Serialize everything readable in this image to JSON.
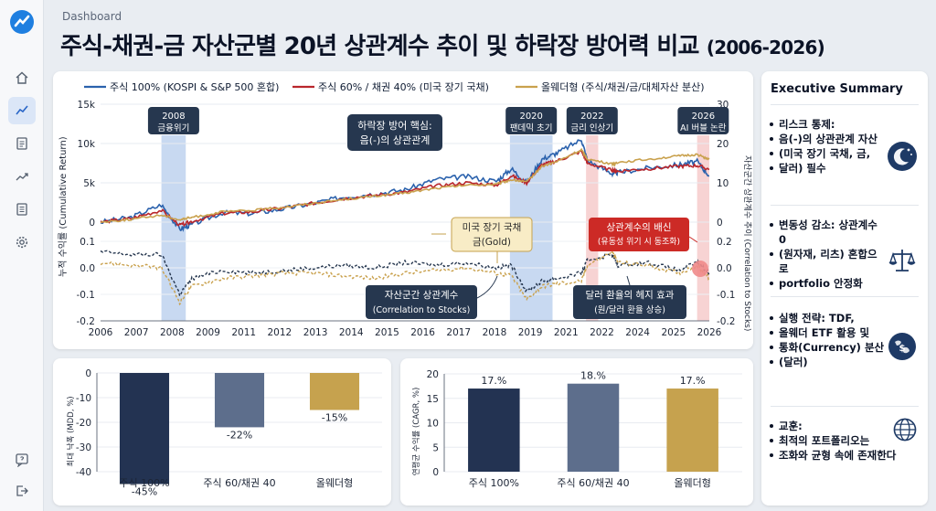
{
  "header": {
    "breadcrumb": "Dashboard",
    "title": "주식-채권-금 자산군별 20년 상관계수 추이 및 하락장 방어력 비교",
    "title_years": "(2006-2026)"
  },
  "nav": {
    "items": [
      "logo-icon",
      "home-icon",
      "chart-icon",
      "document-icon",
      "trend-icon",
      "list-icon",
      "settings-icon"
    ],
    "bottom": [
      "help-icon",
      "logout-icon"
    ],
    "active": "chart-icon"
  },
  "colors": {
    "stock": "#2b62ad",
    "balanced": "#b9262c",
    "allweather": "#c9a14d",
    "navy": "#233352",
    "slate": "#5d6e8c",
    "gold": "#c6a24e",
    "crisis_blue": "#b5ccec",
    "crisis_red": "#f4c4c4"
  },
  "chart_data": [
    {
      "type": "line",
      "legend": [
        "주식 100% (KOSPI & S&P 500 혼합)",
        "주식 60% / 채권 40% (미국 장기 국채)",
        "올웨더형 (주식/채권/금/대체자산 분산)"
      ],
      "x": [
        2006,
        2007,
        2008,
        2008.6,
        2009,
        2010,
        2011,
        2012,
        2013,
        2014,
        2015,
        2016,
        2017,
        2018,
        2019,
        2019.5,
        2020,
        2020.5,
        2021,
        2021.8,
        2022,
        2022.8,
        2023,
        2024,
        2025,
        2025.6,
        2026
      ],
      "xticks": [
        "2006",
        "2007",
        "2008",
        "2009",
        "2011",
        "2012",
        "2013",
        "2014",
        "2015",
        "2016",
        "2017",
        "2018",
        "2019",
        "2021",
        "2022",
        "2024",
        "2025",
        "2026"
      ],
      "ylabel_left": "누적 수익률 (Cumulative Return)",
      "ylabel_right": "자산군간 상관계수 추이 (Correlation to Stocks)",
      "yticks_left_top": [
        "15k",
        "10k",
        "5k",
        "0"
      ],
      "yticks_left_bottom": [
        "0.1",
        "0.0",
        "-0.1",
        "-0.2"
      ],
      "yticks_right_top": [
        "30",
        "20",
        "10",
        "0"
      ],
      "yticks_right_bottom": [
        "0.2",
        "0.0",
        "-0.1",
        "-0.2"
      ],
      "ylim_left_top": [
        0,
        15000
      ],
      "ylim_left_bottom": [
        -0.2,
        0.1
      ],
      "series": [
        {
          "name": "주식 100% (KOSPI & S&P 500 혼합)",
          "role": "stock",
          "values": [
            0,
            600,
            2200,
            -900,
            -300,
            1200,
            1100,
            1700,
            2400,
            3200,
            3600,
            4100,
            5400,
            5800,
            5200,
            6800,
            5000,
            8000,
            8800,
            10500,
            7800,
            6200,
            6300,
            6900,
            7300,
            7700,
            5900
          ]
        },
        {
          "name": "주식 60% / 채권 40% (미국 장기 국채)",
          "role": "balanced",
          "values": [
            0,
            450,
            1500,
            -400,
            100,
            1100,
            1300,
            1800,
            2400,
            3000,
            3400,
            3800,
            4600,
            5000,
            4700,
            5900,
            5000,
            7300,
            7800,
            9000,
            7500,
            6600,
            6500,
            6800,
            7100,
            7200,
            6700
          ]
        },
        {
          "name": "올웨더형 (주식/채권/금/대체자산 분산)",
          "role": "allweather",
          "values": [
            0,
            350,
            900,
            300,
            600,
            1300,
            1500,
            1900,
            2400,
            2900,
            3300,
            3700,
            4300,
            4700,
            4800,
            5400,
            5100,
            7100,
            7700,
            9200,
            8000,
            7400,
            7600,
            8000,
            8400,
            8600,
            8000
          ]
        },
        {
          "name": "자산군간 상관계수",
          "role": "correlation_stock",
          "values": [
            0.06,
            0.05,
            0.05,
            -0.1,
            -0.04,
            -0.01,
            -0.02,
            -0.01,
            0.0,
            0.01,
            0.0,
            0.02,
            0.01,
            0.02,
            0.0,
            0.01,
            -0.09,
            -0.05,
            -0.04,
            -0.02,
            0.03,
            0.05,
            0.01,
            0.02,
            -0.01,
            0.02,
            -0.02
          ]
        },
        {
          "name": "금(Gold)",
          "role": "correlation_gold",
          "values": [
            0.02,
            0.01,
            0.0,
            -0.13,
            -0.07,
            -0.04,
            -0.03,
            -0.02,
            -0.02,
            -0.03,
            -0.04,
            -0.02,
            -0.01,
            0.0,
            -0.02,
            -0.03,
            -0.12,
            -0.07,
            -0.06,
            -0.05,
            0.01,
            0.06,
            0.02,
            0.01,
            -0.02,
            0.01,
            -0.04
          ]
        }
      ],
      "events": [
        {
          "label1": "2008",
          "label2": "금융위기",
          "from": 2008,
          "to": 2008.8,
          "tone": "blue"
        },
        {
          "label1": "2020",
          "label2": "팬데믹 초기",
          "from": 2019.45,
          "to": 2020.85,
          "tone": "blue"
        },
        {
          "label1": "2022",
          "label2": "금리 인상기",
          "from": 2021.95,
          "to": 2022.35,
          "tone": "red"
        },
        {
          "label1": "2026",
          "label2": "AI 버블 논란",
          "from": 2025.6,
          "to": 2026,
          "tone": "red"
        }
      ],
      "annotations": {
        "hedge_core_1": "하락장 방어 핵심:",
        "hedge_core_2": "음(-)의 상관관계",
        "bond_gold_1": "미국 장기 국채",
        "bond_gold_2": "금(Gold)",
        "corr_betrayal_1": "상관계수의 배신",
        "corr_betrayal_2": "(유동성 위기 시 동조화)",
        "asset_corr_1": "자산군간 상관계수",
        "asset_corr_2": "(Correlation to Stocks)",
        "fx_hedge_1": "달러 환율의 헤지 효과",
        "fx_hedge_2": "(원/달러 환율 상승)"
      }
    },
    {
      "type": "bar",
      "ylabel": "최대 낙폭 (MDD, %)",
      "categories": [
        "주식 100%",
        "주식 60/채권 40",
        "올웨더형"
      ],
      "values": [
        -45,
        -22,
        -15
      ],
      "value_labels": [
        "-45%",
        "-22%",
        "-15%"
      ],
      "ylim": [
        -40,
        0
      ],
      "yticks": [
        "0",
        "-10",
        "-20",
        "-30",
        "-40"
      ]
    },
    {
      "type": "bar",
      "ylabel": "연평균 수익률 (CAGR, %)",
      "categories": [
        "주식 100%",
        "주식 60/채권 40",
        "올웨더형"
      ],
      "values": [
        17,
        18,
        17
      ],
      "value_labels": [
        "17.%",
        "18.%",
        "17.%"
      ],
      "ylim": [
        0,
        20
      ],
      "yticks": [
        "20",
        "15",
        "10",
        "5",
        "0"
      ]
    }
  ],
  "summary": {
    "title": "Executive Summary",
    "items": [
      {
        "lines": [
          "리스크 통제:",
          "음(-)의 상관관계 자산",
          "(미국 장기 국채, 금,",
          "달러) 필수"
        ],
        "icon": "moon-stars-icon"
      },
      {
        "lines": [
          "변동성 감소: 상관계수 0",
          "(원자재, 리츠) 혼합으로",
          "portfolio 안정화"
        ],
        "icon": "scales-icon"
      },
      {
        "lines": [
          "실행 전략: TDF,",
          "올웨더 ETF 활용 및",
          "통화(Currency) 분산",
          "(달러)"
        ],
        "icon": "globe-money-icon"
      },
      {
        "lines": [
          "교훈:",
          "최적의 포트폴리오는",
          "조화와 균형 속에 존재한다"
        ],
        "icon": "globe-icon"
      }
    ]
  }
}
